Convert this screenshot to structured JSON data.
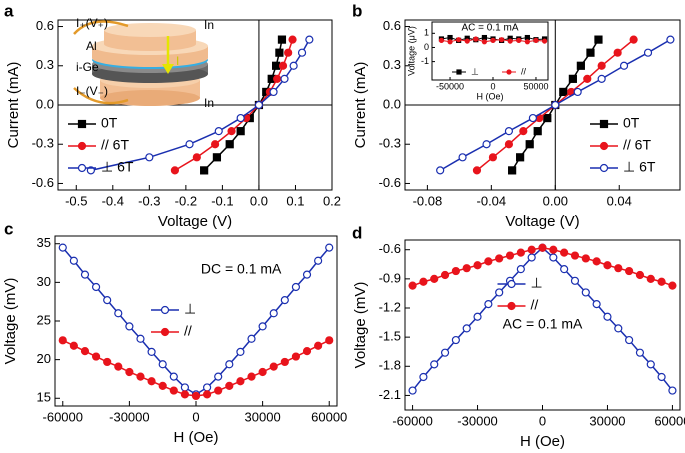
{
  "chart_data": [
    {
      "type": "line",
      "panel_label": "a",
      "xlabel": "Voltage (V)",
      "ylabel": "Current (mA)",
      "xlim": [
        -0.55,
        0.2
      ],
      "xticks": [
        -0.5,
        -0.4,
        -0.3,
        -0.2,
        -0.1,
        {
          "value": 0,
          "label": "0.0"
        },
        0.1,
        0.2
      ],
      "ylim": [
        -0.65,
        0.65
      ],
      "yticks": [
        -0.6,
        -0.3,
        {
          "value": 0,
          "label": "0.0"
        },
        0.3,
        0.6
      ],
      "zero_lines": true,
      "legend": "lower left",
      "series": [
        {
          "name": "0T",
          "color": "#000000",
          "marker": "square",
          "filled": true,
          "x": [
            -0.15,
            -0.115,
            -0.08,
            -0.05,
            -0.025,
            0,
            0.02,
            0.035,
            0.047,
            0.056,
            0.063
          ],
          "values": [
            -0.5,
            -0.4,
            -0.3,
            -0.2,
            -0.1,
            0,
            0.1,
            0.2,
            0.3,
            0.4,
            0.5
          ]
        },
        {
          "name": "// 6T",
          "color": "#e8141c",
          "marker": "circle",
          "filled": true,
          "x": [
            -0.23,
            -0.17,
            -0.12,
            -0.075,
            -0.035,
            0,
            0.03,
            0.05,
            0.066,
            0.08,
            0.092
          ],
          "values": [
            -0.5,
            -0.4,
            -0.3,
            -0.2,
            -0.1,
            0,
            0.1,
            0.2,
            0.3,
            0.4,
            0.5
          ]
        },
        {
          "name": "⊥ 6T",
          "color": "#1a2fb0",
          "marker": "circle",
          "filled": false,
          "x": [
            -0.46,
            -0.3,
            -0.19,
            -0.11,
            -0.05,
            0,
            0.04,
            0.07,
            0.095,
            0.118,
            0.138
          ],
          "values": [
            -0.5,
            -0.4,
            -0.3,
            -0.2,
            -0.1,
            0,
            0.1,
            0.2,
            0.3,
            0.4,
            0.5
          ]
        }
      ]
    },
    {
      "type": "line",
      "panel_label": "b",
      "xlabel": "Voltage (V)",
      "ylabel": "Current (mA)",
      "xlim": [
        -0.094,
        0.078
      ],
      "xticks": [
        -0.08,
        -0.04,
        {
          "value": 0,
          "label": "0.00"
        },
        0.04
      ],
      "ylim": [
        -0.65,
        0.65
      ],
      "yticks": [
        -0.6,
        -0.3,
        {
          "value": 0,
          "label": "0.0"
        },
        0.3,
        0.6
      ],
      "zero_lines": true,
      "legend": "lower right",
      "series": [
        {
          "name": "0T",
          "color": "#000000",
          "marker": "square",
          "filled": true,
          "x": [
            -0.027,
            -0.022,
            -0.016,
            -0.011,
            -0.005,
            0,
            0.005,
            0.011,
            0.016,
            0.022,
            0.027
          ],
          "values": [
            -0.5,
            -0.4,
            -0.3,
            -0.2,
            -0.1,
            0,
            0.1,
            0.2,
            0.3,
            0.4,
            0.5
          ]
        },
        {
          "name": "// 6T",
          "color": "#e8141c",
          "marker": "circle",
          "filled": true,
          "x": [
            -0.049,
            -0.039,
            -0.029,
            -0.02,
            -0.01,
            0,
            0.01,
            0.02,
            0.029,
            0.039,
            0.049
          ],
          "values": [
            -0.5,
            -0.4,
            -0.3,
            -0.2,
            -0.1,
            0,
            0.1,
            0.2,
            0.3,
            0.4,
            0.5
          ]
        },
        {
          "name": "⊥ 6T",
          "color": "#1a2fb0",
          "marker": "circle",
          "filled": false,
          "x": [
            -0.072,
            -0.058,
            -0.043,
            -0.029,
            -0.014,
            0,
            0.014,
            0.029,
            0.043,
            0.058,
            0.072
          ],
          "values": [
            -0.5,
            -0.4,
            -0.3,
            -0.2,
            -0.1,
            0,
            0.1,
            0.2,
            0.3,
            0.4,
            0.5
          ]
        }
      ]
    },
    {
      "type": "line",
      "panel_label": "c",
      "xlabel": "H (Oe)",
      "ylabel": "Voltage (mV)",
      "annotation": "DC = 0.1 mA",
      "xlim": [
        -63500,
        63500
      ],
      "xticks": [
        -60000,
        -30000,
        0,
        30000,
        60000
      ],
      "ylim": [
        14,
        36
      ],
      "yticks": [
        15,
        20,
        25,
        30,
        35
      ],
      "legend": "center",
      "x": [
        -60000,
        -55000,
        -50000,
        -45000,
        -40000,
        -35000,
        -30000,
        -25000,
        -20000,
        -15000,
        -10000,
        -5000,
        0,
        5000,
        10000,
        15000,
        20000,
        25000,
        30000,
        35000,
        40000,
        45000,
        50000,
        55000,
        60000
      ],
      "series": [
        {
          "name": "⊥",
          "color": "#1a2fb0",
          "marker": "circle",
          "filled": false,
          "values": [
            34.5,
            32.8,
            31.0,
            29.4,
            27.7,
            26.0,
            24.3,
            22.7,
            21.0,
            19.4,
            17.8,
            16.4,
            15.5,
            16.4,
            17.8,
            19.4,
            21.0,
            22.7,
            24.3,
            26.0,
            27.7,
            29.4,
            31.0,
            32.8,
            34.5
          ]
        },
        {
          "name": "//",
          "color": "#e8141c",
          "marker": "circle",
          "filled": true,
          "values": [
            22.5,
            21.8,
            21.1,
            20.4,
            19.7,
            19.1,
            18.4,
            17.8,
            17.2,
            16.6,
            16.0,
            15.5,
            15.3,
            15.5,
            16.0,
            16.6,
            17.2,
            17.8,
            18.4,
            19.1,
            19.7,
            20.4,
            21.1,
            21.8,
            22.5
          ]
        }
      ]
    },
    {
      "type": "line",
      "panel_label": "d",
      "xlabel": "H (Oe)",
      "ylabel": "Voltage (mV)",
      "annotation": "AC = 0.1 mA",
      "xlim": [
        -63500,
        63500
      ],
      "xticks": [
        -60000,
        -30000,
        0,
        30000,
        60000
      ],
      "ylim": [
        -2.25,
        -0.5
      ],
      "yticks": [
        -2.1,
        -1.8,
        -1.5,
        -1.2,
        -0.9,
        -0.6
      ],
      "legend": "center",
      "x": [
        -60000,
        -55000,
        -50000,
        -45000,
        -40000,
        -35000,
        -30000,
        -25000,
        -20000,
        -15000,
        -10000,
        -5000,
        0,
        5000,
        10000,
        15000,
        20000,
        25000,
        30000,
        35000,
        40000,
        45000,
        50000,
        55000,
        60000
      ],
      "series": [
        {
          "name": "⊥",
          "color": "#1a2fb0",
          "marker": "circle",
          "filled": false,
          "values": [
            -2.05,
            -1.91,
            -1.78,
            -1.66,
            -1.53,
            -1.41,
            -1.29,
            -1.16,
            -1.04,
            -0.92,
            -0.8,
            -0.68,
            -0.58,
            -0.68,
            -0.8,
            -0.92,
            -1.04,
            -1.16,
            -1.29,
            -1.41,
            -1.53,
            -1.66,
            -1.78,
            -1.91,
            -2.05
          ]
        },
        {
          "name": "//",
          "color": "#e8141c",
          "marker": "circle",
          "filled": true,
          "values": [
            -0.97,
            -0.93,
            -0.9,
            -0.86,
            -0.82,
            -0.79,
            -0.76,
            -0.72,
            -0.69,
            -0.66,
            -0.63,
            -0.6,
            -0.58,
            -0.6,
            -0.63,
            -0.66,
            -0.69,
            -0.72,
            -0.76,
            -0.79,
            -0.82,
            -0.86,
            -0.9,
            -0.93,
            -0.97
          ]
        }
      ]
    },
    {
      "type": "line",
      "xlabel": "H (Oe)",
      "ylabel": "Voltage (μV)",
      "annotation": "AC = 0.1 mA",
      "xlim": [
        -71000,
        64000
      ],
      "xticks": [
        -50000,
        0,
        50000
      ],
      "ylim": [
        -2.3,
        1.8
      ],
      "yticks": [
        -1,
        0,
        1
      ],
      "legend": "lower center",
      "x": [
        -60000,
        -50000,
        -40000,
        -30000,
        -20000,
        -10000,
        0,
        10000,
        20000,
        30000,
        40000,
        50000,
        60000
      ],
      "series": [
        {
          "name": "⊥",
          "color": "#000000",
          "marker": "square",
          "filled": true,
          "values": [
            0.6,
            0.7,
            0.5,
            0.65,
            0.55,
            0.7,
            0.6,
            0.5,
            0.65,
            0.6,
            0.7,
            0.55,
            0.6
          ]
        },
        {
          "name": "//",
          "color": "#e8141c",
          "marker": "circle",
          "filled": true,
          "values": [
            0.5,
            0.4,
            0.55,
            0.45,
            0.6,
            0.4,
            0.5,
            0.55,
            0.45,
            0.5,
            0.4,
            0.5,
            0.45
          ]
        }
      ]
    }
  ],
  "schematic": {
    "top_lead": "I₊(V₊)",
    "top_contact": "In",
    "layer_metal": "Al",
    "layer_semiconductor": "i-Ge",
    "current": "I",
    "bottom_lead": "I₋(V₋)",
    "bottom_contact": "In"
  }
}
